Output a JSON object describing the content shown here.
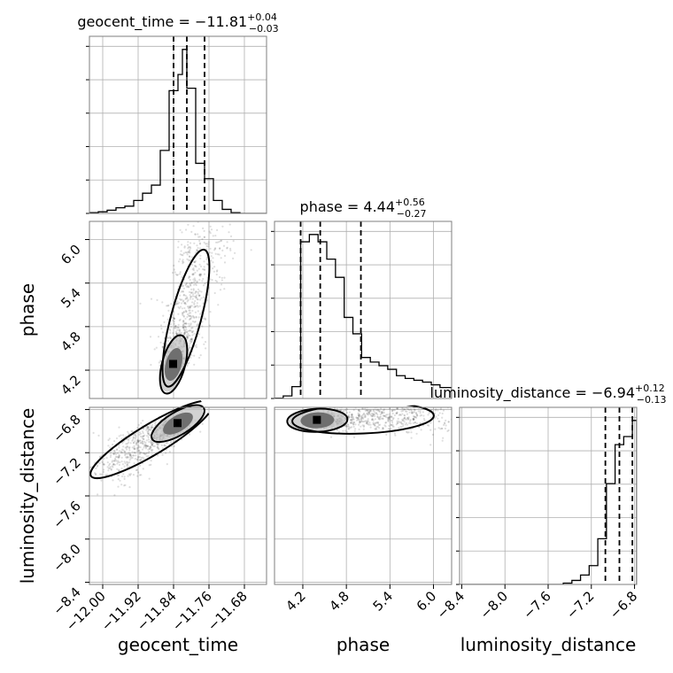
{
  "chart_data": {
    "type": "corner",
    "parameters": [
      "geocent_time",
      "phase",
      "luminosity_distance"
    ],
    "axis_labels": {
      "geocent_time": "geocent_time",
      "phase": "phase",
      "luminosity_distance": "luminosity_distance"
    },
    "titles": [
      {
        "param": "geocent_time",
        "prefix": "geocent_time = ",
        "median": "−11.81",
        "plus": "+0.04",
        "minus": "−0.03"
      },
      {
        "param": "phase",
        "prefix": "phase = ",
        "median": "4.44",
        "plus": "+0.56",
        "minus": "−0.27"
      },
      {
        "param": "luminosity_distance",
        "prefix": "luminosity_distance = ",
        "median": "−6.94",
        "plus": "+0.12",
        "minus": "−0.13"
      }
    ],
    "ranges": {
      "geocent_time": [
        -12.03,
        -11.63
      ],
      "phase": [
        3.81,
        6.25
      ],
      "luminosity_distance": [
        -8.42,
        -6.78
      ]
    },
    "ticks": {
      "geocent_time": [
        {
          "value": -12.0,
          "label": "−12.00"
        },
        {
          "value": -11.92,
          "label": "−11.92"
        },
        {
          "value": -11.84,
          "label": "−11.84"
        },
        {
          "value": -11.76,
          "label": "−11.76"
        },
        {
          "value": -11.68,
          "label": "−11.68"
        }
      ],
      "phase": [
        {
          "value": 4.2,
          "label": "4.2"
        },
        {
          "value": 4.8,
          "label": "4.8"
        },
        {
          "value": 5.4,
          "label": "5.4"
        },
        {
          "value": 6.0,
          "label": "6.0"
        }
      ],
      "luminosity_distance": [
        {
          "value": -8.4,
          "label": "−8.4"
        },
        {
          "value": -8.0,
          "label": "−8.0"
        },
        {
          "value": -7.6,
          "label": "−7.6"
        },
        {
          "value": -7.2,
          "label": "−7.2"
        },
        {
          "value": -6.8,
          "label": "−6.8"
        }
      ]
    },
    "quantiles": {
      "geocent_time": [
        -11.84,
        -11.81,
        -11.77
      ],
      "phase": [
        4.17,
        4.44,
        5.0
      ],
      "luminosity_distance": [
        -7.07,
        -6.94,
        -6.82
      ]
    },
    "histograms": {
      "geocent_time": {
        "edges": [
          -12.03,
          -12.01,
          -11.99,
          -11.97,
          -11.95,
          -11.93,
          -11.91,
          -11.89,
          -11.87,
          -11.85,
          -11.83,
          -11.82,
          -11.81,
          -11.79,
          -11.77,
          -11.75,
          -11.73,
          -11.71,
          -11.69,
          -11.67,
          -11.65,
          -11.63
        ],
        "counts": [
          1,
          2,
          4,
          7,
          9,
          16,
          25,
          35,
          78,
          152,
          172,
          203,
          155,
          62,
          43,
          16,
          5,
          1,
          0,
          0,
          0
        ]
      },
      "phase": {
        "edges": [
          3.81,
          3.93,
          4.05,
          4.17,
          4.29,
          4.41,
          4.53,
          4.65,
          4.77,
          4.89,
          5.01,
          5.13,
          5.25,
          5.37,
          5.49,
          5.61,
          5.73,
          5.85,
          5.97,
          6.09,
          6.25
        ],
        "counts": [
          0.3,
          2.8,
          13,
          172,
          180,
          172,
          153,
          133,
          89,
          71,
          45,
          40,
          36,
          32,
          25,
          22,
          20,
          18,
          15,
          12
        ]
      },
      "luminosity_distance": {
        "edges": [
          -8.42,
          -8.34,
          -8.26,
          -8.18,
          -8.1,
          -8.02,
          -7.94,
          -7.86,
          -7.78,
          -7.7,
          -7.62,
          -7.54,
          -7.46,
          -7.38,
          -7.3,
          -7.22,
          -7.14,
          -7.06,
          -6.98,
          -6.9,
          -6.82,
          -6.78
        ],
        "counts": [
          0,
          0,
          0,
          0,
          0,
          0,
          0,
          0,
          0,
          0,
          0,
          0,
          1,
          3,
          7,
          14,
          34,
          75,
          104,
          110,
          122
        ]
      }
    },
    "scatter": {
      "geocent_time__phase": {
        "center": [
          -11.84,
          4.28
        ],
        "tail_to": [
          -11.76,
          6.1
        ]
      },
      "geocent_time__luminosity_distance": {
        "center": [
          -11.83,
          -6.93
        ],
        "tail_to": [
          -12.0,
          -7.35
        ]
      },
      "phase__luminosity_distance": {
        "center": [
          4.4,
          -6.9
        ],
        "tail_to": [
          6.2,
          -6.85
        ]
      }
    },
    "grid": true
  }
}
